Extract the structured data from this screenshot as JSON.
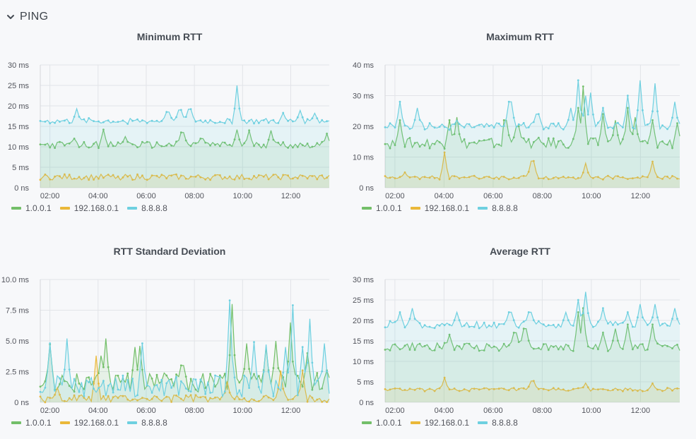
{
  "row": {
    "title": "PING",
    "collapse_icon": "chevron-down-icon"
  },
  "colors": {
    "s1": "#73bf69",
    "s2": "#eab839",
    "s3": "#6ed0e0"
  },
  "legend_names": [
    "1.0.0.1",
    "192.168.0.1",
    "8.8.8.8"
  ],
  "x_ticks": [
    "02:00",
    "04:00",
    "06:00",
    "08:00",
    "10:00",
    "12:00"
  ],
  "chart_data": [
    {
      "id": "min",
      "type": "line",
      "title": "Minimum RTT",
      "ylabel": "",
      "xlabel": "",
      "y_ticks": [
        "30 ms",
        "25 ms",
        "20 ms",
        "15 ms",
        "10 ms",
        "5 ms",
        "0 ns"
      ],
      "y_tick_values": [
        30,
        25,
        20,
        15,
        10,
        5,
        0
      ],
      "ylim": [
        0,
        30
      ],
      "x_range_hours": [
        1.6,
        13.6
      ],
      "grid": true,
      "legend_position": "bottom-left",
      "series": [
        {
          "name": "1.0.0.1",
          "base": 10.5,
          "noise": 0.8,
          "spikes": [
            [
              3.0,
              12.0
            ],
            [
              4.2,
              14.2
            ],
            [
              5.1,
              12.5
            ],
            [
              7.5,
              13.5
            ],
            [
              8.3,
              12.0
            ],
            [
              9.8,
              14.2
            ],
            [
              10.3,
              14.0
            ],
            [
              11.2,
              14.0
            ],
            [
              13.5,
              13.2
            ]
          ]
        },
        {
          "name": "192.168.0.1",
          "base": 2.6,
          "noise": 0.7,
          "spikes": []
        },
        {
          "name": "8.8.8.8",
          "base": 16.3,
          "noise": 0.7,
          "spikes": [
            [
              3.1,
              19.3
            ],
            [
              6.9,
              18.5
            ],
            [
              7.4,
              19.0
            ],
            [
              7.8,
              19.2
            ],
            [
              9.8,
              25.0
            ],
            [
              11.7,
              18.3
            ],
            [
              12.4,
              18.9
            ],
            [
              13.0,
              18.2
            ]
          ]
        }
      ]
    },
    {
      "id": "max",
      "type": "line",
      "title": "Maximum RTT",
      "ylabel": "",
      "xlabel": "",
      "y_ticks": [
        "40 ms",
        "30 ms",
        "20 ms",
        "10 ms",
        "0 ns"
      ],
      "y_tick_values": [
        40,
        30,
        20,
        10,
        0
      ],
      "ylim": [
        0,
        40
      ],
      "x_range_hours": [
        1.6,
        13.6
      ],
      "grid": true,
      "legend_position": "bottom-left",
      "series": [
        {
          "name": "1.0.0.1",
          "base": 14.5,
          "noise": 1.8,
          "spikes": [
            [
              2.2,
              22.0
            ],
            [
              4.2,
              22.0
            ],
            [
              4.5,
              23.0
            ],
            [
              6.5,
              22.0
            ],
            [
              7.0,
              20.0
            ],
            [
              9.5,
              26.0
            ],
            [
              9.7,
              33.0
            ],
            [
              10.5,
              24.0
            ],
            [
              11.0,
              22.0
            ],
            [
              11.5,
              26.0
            ],
            [
              11.8,
              23.0
            ],
            [
              12.5,
              22.0
            ],
            [
              13.5,
              21.0
            ]
          ]
        },
        {
          "name": "192.168.0.1",
          "base": 3.3,
          "noise": 0.6,
          "spikes": [
            [
              2.4,
              5.0
            ],
            [
              4.0,
              11.5
            ],
            [
              7.6,
              8.7
            ],
            [
              9.8,
              8.0
            ],
            [
              12.5,
              8.5
            ]
          ]
        },
        {
          "name": "8.8.8.8",
          "base": 20.0,
          "noise": 1.2,
          "spikes": [
            [
              2.2,
              28.0
            ],
            [
              2.9,
              26.0
            ],
            [
              4.5,
              22.0
            ],
            [
              6.7,
              28.0
            ],
            [
              7.8,
              24.0
            ],
            [
              9.2,
              26.0
            ],
            [
              9.5,
              35.0
            ],
            [
              9.8,
              30.0
            ],
            [
              10.0,
              31.0
            ],
            [
              10.5,
              26.0
            ],
            [
              11.5,
              30.0
            ],
            [
              12.0,
              35.0
            ],
            [
              12.6,
              34.0
            ],
            [
              13.4,
              28.0
            ]
          ]
        }
      ]
    },
    {
      "id": "std",
      "type": "line",
      "title": "RTT Standard Deviation",
      "ylabel": "",
      "xlabel": "",
      "y_ticks": [
        "10.0 ms",
        "7.5 ms",
        "5.0 ms",
        "2.5 ms",
        "0 ns"
      ],
      "y_tick_values": [
        10,
        7.5,
        5,
        2.5,
        0
      ],
      "ylim": [
        0,
        10
      ],
      "x_range_hours": [
        1.6,
        13.6
      ],
      "grid": true,
      "legend_position": "bottom-left",
      "series": [
        {
          "name": "1.0.0.1",
          "base": 1.6,
          "noise": 0.8,
          "spikes": [
            [
              2.0,
              4.7
            ],
            [
              4.1,
              3.8
            ],
            [
              4.3,
              5.2
            ],
            [
              5.5,
              4.5
            ],
            [
              5.7,
              4.6
            ],
            [
              7.5,
              3.0
            ],
            [
              9.6,
              8.0
            ],
            [
              10.2,
              4.8
            ],
            [
              11.0,
              4.5
            ],
            [
              11.4,
              5.0
            ],
            [
              12.0,
              6.5
            ],
            [
              12.7,
              4.0
            ],
            [
              13.5,
              2.6
            ]
          ]
        },
        {
          "name": "192.168.0.1",
          "base": 0.3,
          "noise": 0.3,
          "spikes": [
            [
              2.3,
              1.2
            ],
            [
              3.9,
              3.8
            ],
            [
              9.4,
              1.7
            ],
            [
              11.6,
              2.6
            ],
            [
              12.5,
              2.6
            ]
          ]
        },
        {
          "name": "8.8.8.8",
          "base": 1.3,
          "noise": 0.9,
          "spikes": [
            [
              2.0,
              4.8
            ],
            [
              2.7,
              5.2
            ],
            [
              5.8,
              4.8
            ],
            [
              9.5,
              8.3
            ],
            [
              10.5,
              4.9
            ],
            [
              11.0,
              4.7
            ],
            [
              11.8,
              4.5
            ],
            [
              12.1,
              7.9
            ],
            [
              12.5,
              4.5
            ],
            [
              12.8,
              6.8
            ],
            [
              13.4,
              4.8
            ]
          ]
        }
      ]
    },
    {
      "id": "avg",
      "type": "line",
      "title": "Average RTT",
      "ylabel": "",
      "xlabel": "",
      "y_ticks": [
        "30 ms",
        "25 ms",
        "20 ms",
        "15 ms",
        "10 ms",
        "5 ms",
        "0 ns"
      ],
      "y_tick_values": [
        30,
        25,
        20,
        15,
        10,
        5,
        0
      ],
      "ylim": [
        0,
        30
      ],
      "x_range_hours": [
        1.6,
        13.6
      ],
      "grid": true,
      "legend_position": "bottom-left",
      "series": [
        {
          "name": "1.0.0.1",
          "base": 13.5,
          "noise": 1.0,
          "spikes": [
            [
              4.2,
              16.5
            ],
            [
              6.9,
              17.0
            ],
            [
              7.3,
              18.0
            ],
            [
              9.5,
              22.0
            ],
            [
              9.7,
              23.0
            ],
            [
              10.5,
              17.0
            ],
            [
              11.0,
              18.0
            ],
            [
              11.5,
              19.0
            ],
            [
              12.5,
              19.0
            ]
          ]
        },
        {
          "name": "192.168.0.1",
          "base": 3.1,
          "noise": 0.4,
          "spikes": [
            [
              4.0,
              6.0
            ],
            [
              7.6,
              5.2
            ],
            [
              9.8,
              4.7
            ],
            [
              12.5,
              4.6
            ]
          ]
        },
        {
          "name": "8.8.8.8",
          "base": 19.0,
          "noise": 0.9,
          "spikes": [
            [
              2.2,
              22.0
            ],
            [
              2.7,
              23.0
            ],
            [
              4.5,
              22.0
            ],
            [
              6.7,
              22.0
            ],
            [
              7.5,
              22.0
            ],
            [
              9.0,
              22.0
            ],
            [
              9.5,
              25.0
            ],
            [
              9.8,
              27.0
            ],
            [
              10.5,
              23.0
            ],
            [
              11.5,
              22.0
            ],
            [
              12.0,
              24.0
            ],
            [
              12.6,
              24.0
            ],
            [
              13.4,
              23.0
            ]
          ]
        }
      ]
    }
  ]
}
